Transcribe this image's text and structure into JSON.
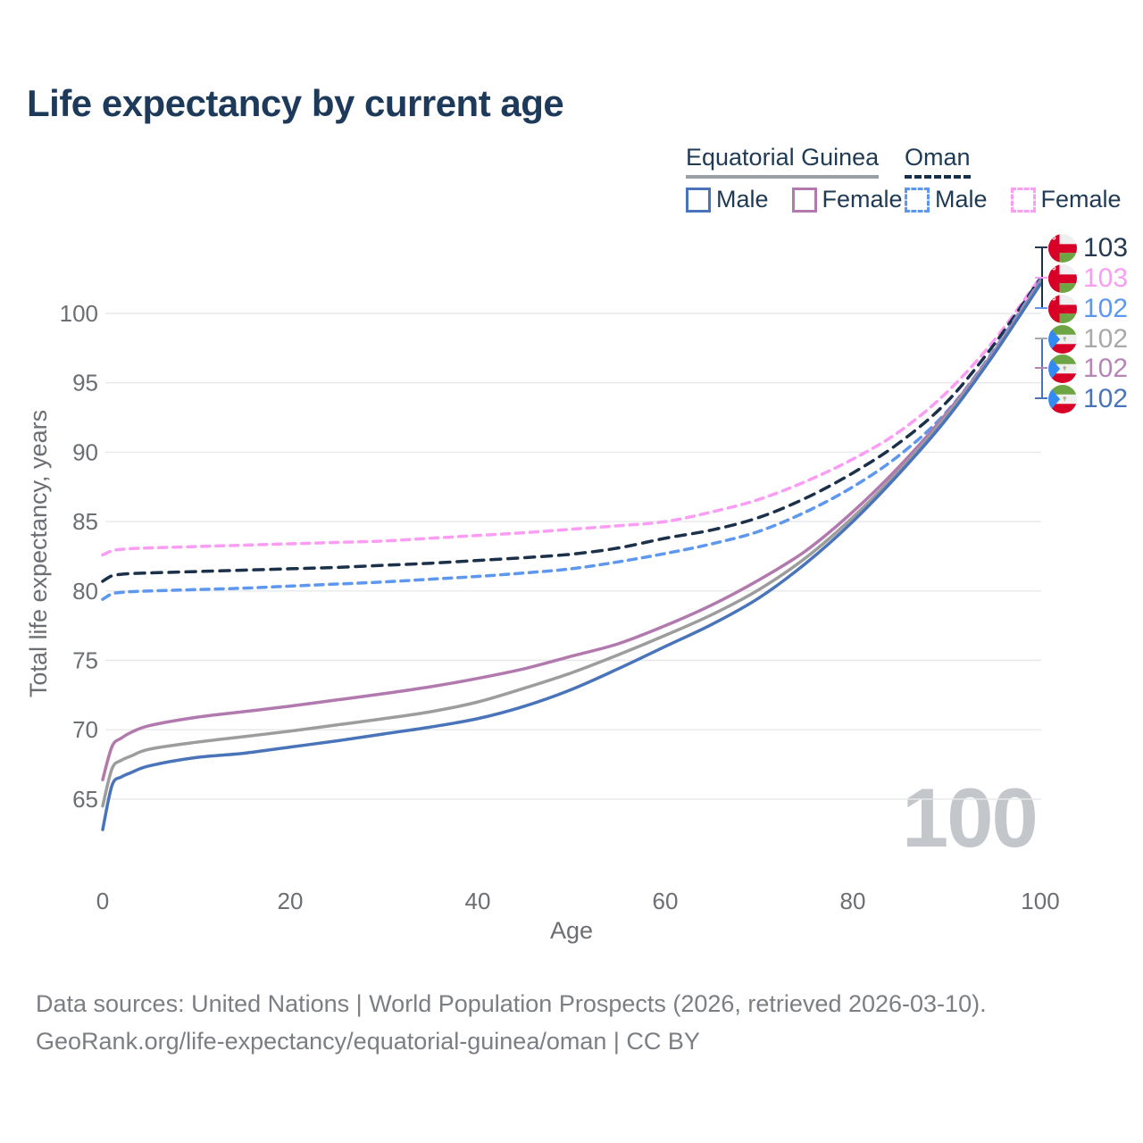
{
  "title": "Life expectancy by current age",
  "legend": {
    "group1": {
      "header": "Equatorial Guinea",
      "male_label": "Male",
      "female_label": "Female"
    },
    "group2": {
      "header": "Oman",
      "male_label": "Male",
      "female_label": "Female"
    }
  },
  "watermark": "100",
  "footer": {
    "line1": "Data sources: United Nations | World Population Prospects (2026, retrieved 2026-03-10).",
    "line2": "GeoRank.org/life-expectancy/equatorial-guinea/oman | CC BY"
  },
  "chart_data": {
    "type": "line",
    "title": "Life expectancy by current age",
    "xlabel": "Age",
    "ylabel": "Total life expectancy, years",
    "xlim": [
      0,
      100
    ],
    "ylim": [
      62,
      104
    ],
    "xticks": [
      0,
      20,
      40,
      60,
      80,
      100
    ],
    "yticks": [
      65,
      70,
      75,
      80,
      85,
      90,
      95,
      100
    ],
    "grid": "horizontal",
    "legend_position": "top-right",
    "ages": [
      0,
      1,
      2,
      3,
      5,
      10,
      15,
      20,
      25,
      30,
      35,
      40,
      45,
      50,
      55,
      60,
      65,
      70,
      75,
      80,
      85,
      90,
      95,
      100
    ],
    "series": [
      {
        "name": "Oman Female",
        "country": "Oman",
        "sex": "Female",
        "style": "dashed",
        "color": "#fb9df4",
        "dash": "9 7",
        "values": [
          82.6,
          82.9,
          83.0,
          83.05,
          83.1,
          83.2,
          83.3,
          83.4,
          83.5,
          83.6,
          83.8,
          84.0,
          84.2,
          84.45,
          84.7,
          85.0,
          85.7,
          86.6,
          87.9,
          89.5,
          91.5,
          94.3,
          98.0,
          102.6
        ]
      },
      {
        "name": "Oman Both sexes",
        "country": "Oman",
        "sex": "Both",
        "style": "dashed",
        "color": "#1b3049",
        "dash": "11 8",
        "values": [
          80.7,
          81.1,
          81.2,
          81.25,
          81.3,
          81.4,
          81.5,
          81.6,
          81.7,
          81.85,
          82.0,
          82.2,
          82.4,
          82.65,
          83.1,
          83.8,
          84.4,
          85.3,
          86.7,
          88.5,
          90.7,
          93.6,
          97.7,
          102.5
        ]
      },
      {
        "name": "Oman Male",
        "country": "Oman",
        "sex": "Male",
        "style": "dashed",
        "color": "#5d97ee",
        "dash": "9 7",
        "values": [
          79.4,
          79.8,
          79.9,
          79.95,
          80.0,
          80.1,
          80.2,
          80.35,
          80.5,
          80.65,
          80.85,
          81.05,
          81.3,
          81.6,
          82.1,
          82.7,
          83.4,
          84.3,
          85.7,
          87.5,
          89.8,
          92.9,
          97.3,
          102.4
        ]
      },
      {
        "name": "Equatorial Guinea Female",
        "country": "Equatorial Guinea",
        "sex": "Female",
        "style": "solid",
        "color": "#b279ae",
        "dash": "",
        "values": [
          66.4,
          68.8,
          69.4,
          69.8,
          70.3,
          70.9,
          71.3,
          71.7,
          72.15,
          72.6,
          73.1,
          73.7,
          74.4,
          75.3,
          76.2,
          77.5,
          79.0,
          80.8,
          82.9,
          85.7,
          89.0,
          92.8,
          97.2,
          102.3
        ]
      },
      {
        "name": "Equatorial Guinea Both sexes",
        "country": "Equatorial Guinea",
        "sex": "Both",
        "style": "solid",
        "color": "#9d9d9d",
        "dash": "",
        "values": [
          64.5,
          67.2,
          67.8,
          68.1,
          68.6,
          69.1,
          69.5,
          69.9,
          70.35,
          70.8,
          71.3,
          72.0,
          73.0,
          74.1,
          75.4,
          76.8,
          78.3,
          80.1,
          82.4,
          85.3,
          88.7,
          92.6,
          97.1,
          102.2
        ]
      },
      {
        "name": "Equatorial Guinea Male",
        "country": "Equatorial Guinea",
        "sex": "Male",
        "style": "solid",
        "color": "#4a74ba",
        "dash": "",
        "values": [
          62.8,
          66.0,
          66.6,
          66.9,
          67.4,
          68.0,
          68.3,
          68.75,
          69.2,
          69.7,
          70.2,
          70.8,
          71.7,
          72.9,
          74.4,
          76.0,
          77.6,
          79.5,
          82.0,
          85.0,
          88.5,
          92.4,
          97.0,
          102.1
        ]
      }
    ],
    "end_labels": [
      {
        "value": "103",
        "series": "Oman Both sexes",
        "flag": "om",
        "color": "#253950"
      },
      {
        "value": "103",
        "series": "Oman Female",
        "flag": "om",
        "color": "#f99df2"
      },
      {
        "value": "102",
        "series": "Oman Male",
        "flag": "om",
        "color": "#5d97ee"
      },
      {
        "value": "102",
        "series": "Equatorial Guinea Both sexes",
        "flag": "gq",
        "color": "#a9a9a9"
      },
      {
        "value": "102",
        "series": "Equatorial Guinea Female",
        "flag": "gq",
        "color": "#b585b5"
      },
      {
        "value": "102",
        "series": "Equatorial Guinea Male",
        "flag": "gq",
        "color": "#4a74ba"
      }
    ]
  }
}
